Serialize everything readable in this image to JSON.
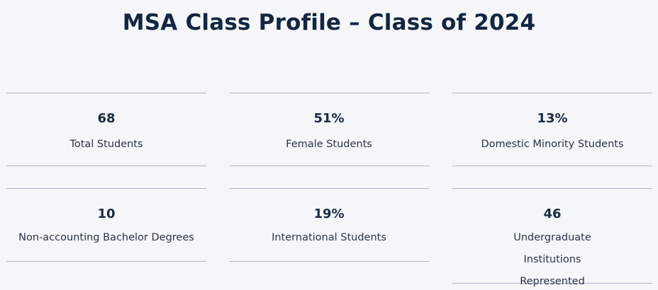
{
  "title": "MSA Class Profile – Class of 2024",
  "stats": [
    {
      "value": "68",
      "label": "Total Students"
    },
    {
      "value": "51%",
      "label": "Female Students"
    },
    {
      "value": "13%",
      "label": "Domestic Minority Students"
    },
    {
      "value": "10",
      "label": "Non-accounting Bachelor Degrees"
    },
    {
      "value": "19%",
      "label": "International Students"
    },
    {
      "value": "46",
      "label": "Undergraduate Institutions Represented"
    }
  ]
}
